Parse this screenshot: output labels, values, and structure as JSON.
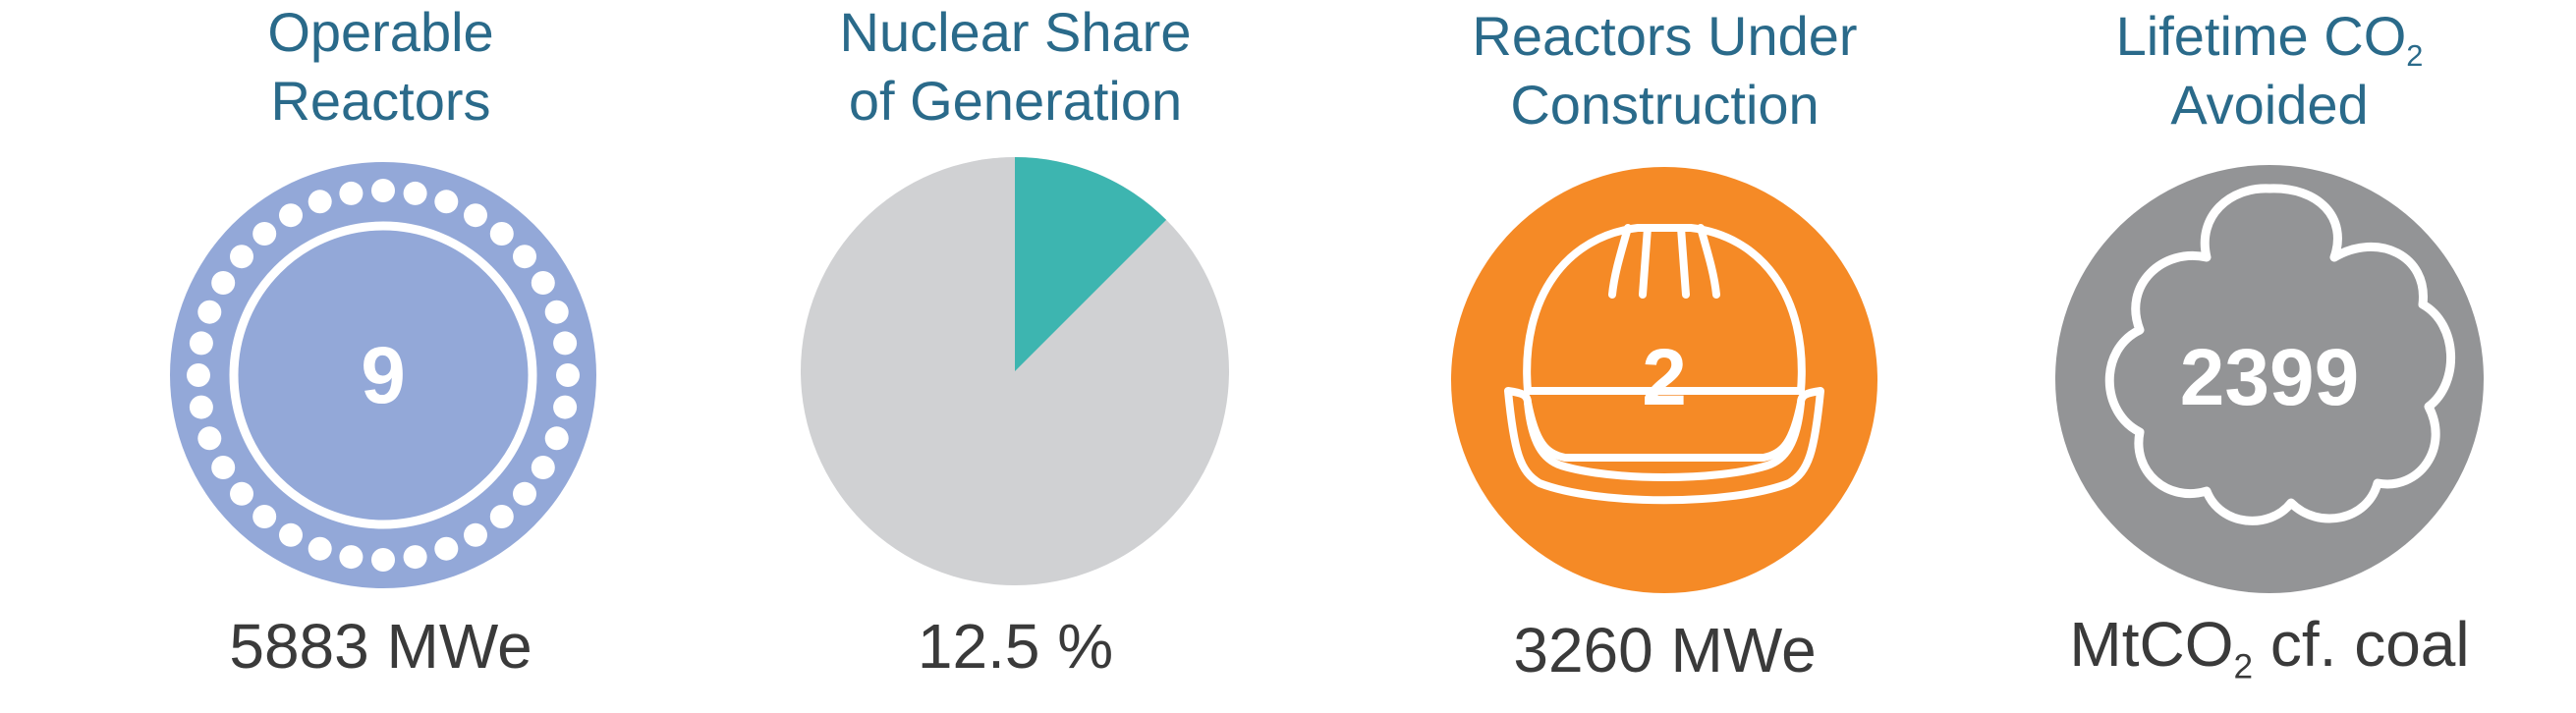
{
  "stats": [
    {
      "title_line1": "Operable",
      "title_line2": "Reactors",
      "number": "9",
      "footer": "5883 MWe",
      "color": "#93a8d8",
      "icon": "reactor-ring-icon"
    },
    {
      "title_line1": "Nuclear Share",
      "title_line2": "of Generation",
      "footer": "12.5 %",
      "share_percent": 12.5,
      "color_slice": "#3db5b0",
      "color_rest": "#d0d1d3",
      "icon": "pie-chart-icon"
    },
    {
      "title_line1": "Reactors Under",
      "title_line2": "Construction",
      "number": "2",
      "footer": "3260 MWe",
      "color": "#f58a26",
      "icon": "hard-hat-icon"
    },
    {
      "title_line1_main": "Lifetime CO",
      "title_line1_sub": "2",
      "title_line2": "Avoided",
      "number": "2399",
      "footer_main": "MtCO",
      "footer_sub": "2",
      "footer_rest": " cf. coal",
      "color": "#939496",
      "icon": "cloud-icon"
    }
  ]
}
